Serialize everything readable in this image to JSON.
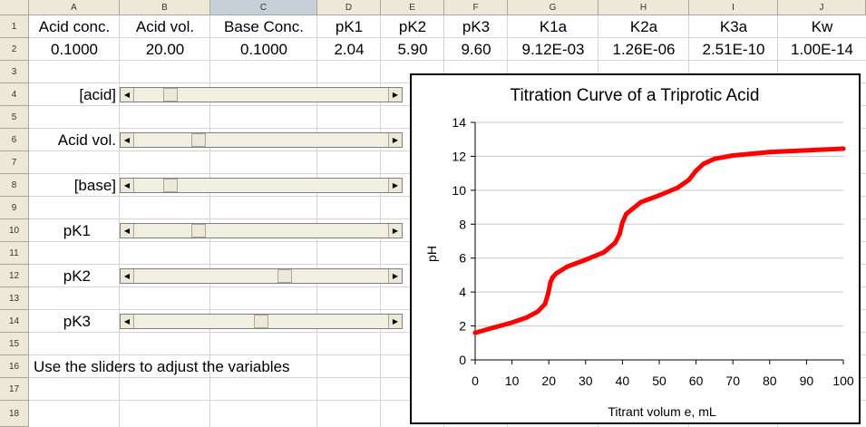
{
  "columns": [
    "A",
    "B",
    "C",
    "D",
    "E",
    "F",
    "G",
    "H",
    "I",
    "J"
  ],
  "selected_column": "C",
  "rows": [
    "1",
    "2",
    "3",
    "4",
    "5",
    "6",
    "7",
    "8",
    "9",
    "10",
    "11",
    "12",
    "13",
    "14",
    "15",
    "16",
    "17",
    "18"
  ],
  "headers": [
    "Acid conc.",
    "Acid vol.",
    "Base Conc.",
    "pK1",
    "pK2",
    "pK3",
    "K1a",
    "K2a",
    "K3a",
    "Kw"
  ],
  "values": [
    "0.1000",
    "20.00",
    "0.1000",
    "2.04",
    "5.90",
    "9.60",
    "9.12E-03",
    "1.26E-06",
    "2.51E-10",
    "1.00E-14"
  ],
  "sliders": [
    {
      "label": "[acid]",
      "level": 0.12
    },
    {
      "label": "Acid vol.",
      "level": 0.24
    },
    {
      "label": "[base]",
      "level": 0.12
    },
    {
      "label": "pK1",
      "level": 0.24
    },
    {
      "label": "pK2",
      "level": 0.6
    },
    {
      "label": "pK3",
      "level": 0.5
    }
  ],
  "note": "Use the sliders to adjust the variables",
  "chart_data": {
    "type": "line",
    "title": "Titration Curve  of a Triprotic Acid",
    "xlabel": "Titrant volum e, mL",
    "ylabel": "pH",
    "xlim": [
      0,
      100
    ],
    "ylim": [
      0,
      14
    ],
    "xticks": [
      "0",
      "10",
      "20",
      "30",
      "40",
      "50",
      "60",
      "70",
      "80",
      "90",
      "100"
    ],
    "yticks": [
      "0",
      "2",
      "4",
      "6",
      "8",
      "10",
      "12",
      "14"
    ],
    "grid": "horizontal",
    "series_color": "#ff0000",
    "x": [
      0,
      5,
      10,
      14,
      17,
      19,
      19.8,
      20.5,
      21,
      22,
      25,
      30,
      35,
      38,
      39.2,
      40,
      41,
      45,
      50,
      55,
      58,
      60,
      62,
      65,
      70,
      75,
      80,
      85,
      90,
      95,
      100
    ],
    "y": [
      1.6,
      1.9,
      2.2,
      2.5,
      2.85,
      3.3,
      3.9,
      4.6,
      4.85,
      5.1,
      5.5,
      5.9,
      6.35,
      6.9,
      7.4,
      8.1,
      8.6,
      9.3,
      9.7,
      10.15,
      10.6,
      11.15,
      11.55,
      11.85,
      12.05,
      12.15,
      12.25,
      12.3,
      12.35,
      12.4,
      12.45
    ]
  }
}
